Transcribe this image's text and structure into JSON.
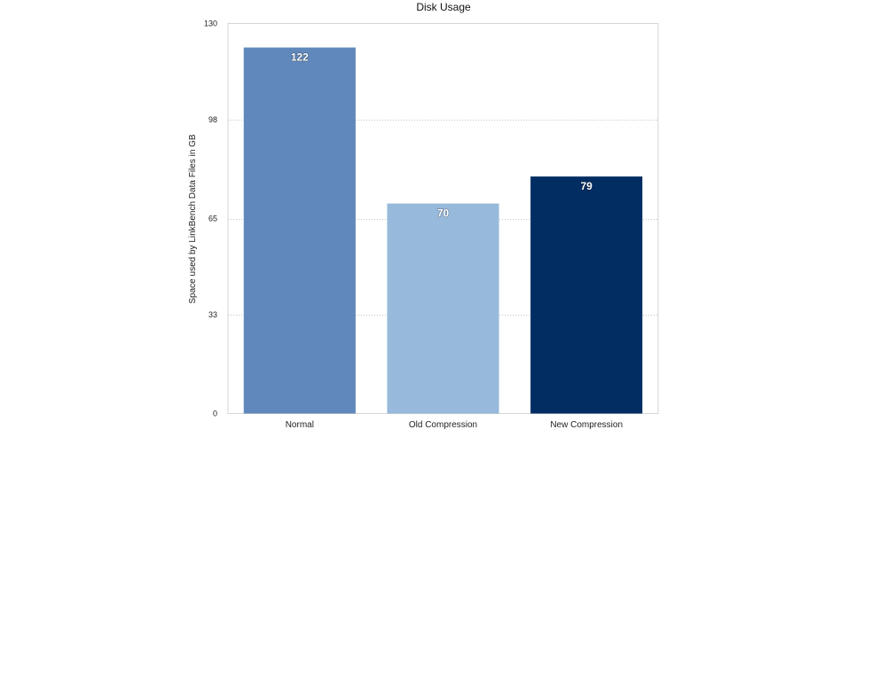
{
  "chart_data": {
    "type": "bar",
    "title": "Disk Usage",
    "xlabel": "",
    "ylabel": "Space used by LinkBench Data Files in GB",
    "categories": [
      "Normal",
      "Old Compression",
      "New Compression"
    ],
    "values": [
      122,
      70,
      79
    ],
    "value_labels": [
      "122",
      "70",
      "79"
    ],
    "ylim": [
      0,
      130
    ],
    "yticks": [
      0,
      33,
      65,
      98,
      130
    ],
    "ytick_labels": [
      "0",
      "33",
      "65",
      "98",
      "130"
    ],
    "bar_colors": [
      "#6088bc",
      "#97b9db",
      "#022d63"
    ],
    "grid": true,
    "legend": "none"
  }
}
